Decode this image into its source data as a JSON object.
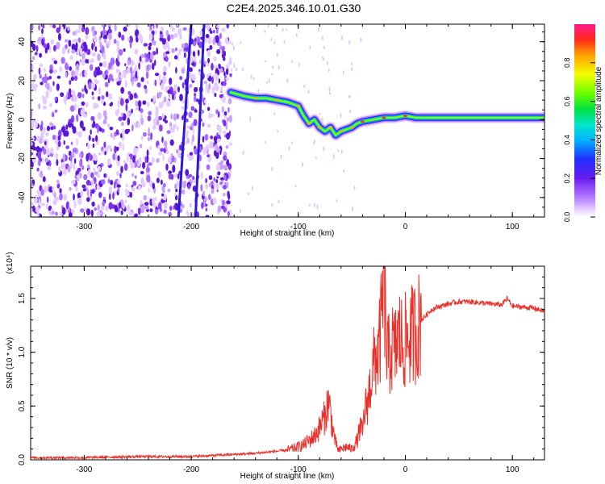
{
  "title": "C2E4.2025.346.10.01.G30",
  "chart_data": [
    {
      "type": "heatmap",
      "xlabel": "Height of straight line (km)",
      "ylabel": "Frequency (Hz)",
      "xlim": [
        -350,
        130
      ],
      "ylim": [
        -50,
        49
      ],
      "x_ticks": [
        -300,
        -200,
        -100,
        0,
        100
      ],
      "x_tick_labels": [
        "-300",
        "-200",
        "-100",
        "0",
        "100"
      ],
      "y_ticks": [
        -40,
        -20,
        0,
        20,
        40
      ],
      "y_tick_labels": [
        "-40",
        "-20",
        "0",
        "20",
        "40"
      ],
      "noise_region_x": [
        -350,
        -163
      ],
      "interference_lines": [
        {
          "x_start": -212,
          "y_start": -50,
          "x_end": -200,
          "y_end": 49
        },
        {
          "x_start": -196,
          "y_start": -50,
          "x_end": -188,
          "y_end": 49
        }
      ],
      "signal_track": [
        {
          "x": -163,
          "y": 14
        },
        {
          "x": -150,
          "y": 12
        },
        {
          "x": -140,
          "y": 11
        },
        {
          "x": -130,
          "y": 11
        },
        {
          "x": -120,
          "y": 10
        },
        {
          "x": -110,
          "y": 9
        },
        {
          "x": -100,
          "y": 7
        },
        {
          "x": -95,
          "y": 2
        },
        {
          "x": -90,
          "y": -2
        },
        {
          "x": -85,
          "y": 0
        },
        {
          "x": -80,
          "y": -4
        },
        {
          "x": -75,
          "y": -6
        },
        {
          "x": -70,
          "y": -4
        },
        {
          "x": -65,
          "y": -8
        },
        {
          "x": -60,
          "y": -6
        },
        {
          "x": -55,
          "y": -5
        },
        {
          "x": -50,
          "y": -4
        },
        {
          "x": -45,
          "y": -2
        },
        {
          "x": -40,
          "y": -1
        },
        {
          "x": -30,
          "y": 0
        },
        {
          "x": -20,
          "y": 1
        },
        {
          "x": -10,
          "y": 1
        },
        {
          "x": 0,
          "y": 2
        },
        {
          "x": 10,
          "y": 1
        },
        {
          "x": 20,
          "y": 1
        },
        {
          "x": 40,
          "y": 1
        },
        {
          "x": 60,
          "y": 1
        },
        {
          "x": 80,
          "y": 1
        },
        {
          "x": 100,
          "y": 1
        },
        {
          "x": 130,
          "y": 1
        }
      ]
    },
    {
      "type": "line",
      "xlabel": "Height of straight line (km)",
      "ylabel": "SNR (10 * v/v)",
      "y_multiplier": "(x10⁴)",
      "xlim": [
        -350,
        130
      ],
      "ylim": [
        0,
        1.8
      ],
      "x_ticks": [
        -300,
        -200,
        -100,
        0,
        100
      ],
      "x_tick_labels": [
        "-300",
        "-200",
        "-100",
        "0",
        "100"
      ],
      "y_ticks": [
        0.0,
        0.5,
        1.0,
        1.5
      ],
      "y_tick_labels": [
        "0.0",
        "0.5",
        "1.0",
        "1.5"
      ],
      "series": [
        {
          "color": "#e8312a",
          "x": [
            -350,
            -300,
            -250,
            -200,
            -180,
            -160,
            -140,
            -120,
            -110,
            -100,
            -95,
            -90,
            -85,
            -80,
            -78,
            -75,
            -72,
            -70,
            -68,
            -65,
            -62,
            -60,
            -55,
            -50,
            -45,
            -42,
            -40,
            -38,
            -35,
            -32,
            -30,
            -28,
            -25,
            -22,
            -20,
            -18,
            -16,
            -14,
            -12,
            -10,
            -8,
            -5,
            -2,
            0,
            5,
            10,
            15,
            20,
            25,
            30,
            40,
            50,
            60,
            70,
            80,
            90,
            95,
            100,
            110,
            120,
            130
          ],
          "y": [
            0.02,
            0.02,
            0.03,
            0.03,
            0.04,
            0.05,
            0.06,
            0.08,
            0.09,
            0.12,
            0.14,
            0.18,
            0.22,
            0.3,
            0.35,
            0.4,
            0.55,
            0.45,
            0.3,
            0.15,
            0.08,
            0.1,
            0.12,
            0.1,
            0.18,
            0.3,
            0.25,
            0.45,
            0.55,
            0.75,
            0.85,
            0.95,
            1.0,
            1.3,
            1.8,
            1.05,
            0.95,
            1.0,
            1.05,
            1.0,
            1.1,
            1.15,
            1.05,
            1.1,
            1.15,
            1.2,
            1.3,
            1.35,
            1.4,
            1.42,
            1.45,
            1.47,
            1.47,
            1.46,
            1.45,
            1.44,
            1.5,
            1.43,
            1.42,
            1.41,
            1.38
          ]
        }
      ]
    }
  ],
  "colorbar": {
    "label": "Normalized spectral amplitude",
    "ticks": [
      0.0,
      0.2,
      0.4,
      0.6,
      0.8
    ],
    "tick_labels": [
      "0.0",
      "0.2",
      "0.4",
      "0.6",
      "0.8"
    ],
    "range": [
      0,
      1
    ]
  }
}
